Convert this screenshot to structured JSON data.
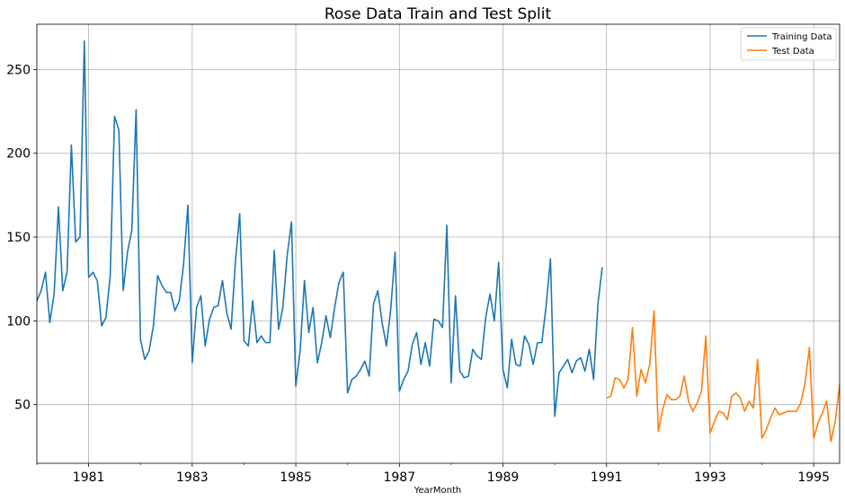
{
  "chart_data": {
    "type": "line",
    "title": "Rose Data Train and Test Split",
    "xlabel": "YearMonth",
    "ylabel": "",
    "xlim": [
      "1980-01",
      "1995-07"
    ],
    "ylim": [
      15,
      277
    ],
    "x_ticks": [
      "1981",
      "1983",
      "1985",
      "1987",
      "1989",
      "1991",
      "1993",
      "1995"
    ],
    "y_ticks": [
      50,
      100,
      150,
      200,
      250
    ],
    "grid": true,
    "legend_position": "top-right",
    "series": [
      {
        "name": "Training Data",
        "color": "#1f77b4",
        "start": "1980-01",
        "values": [
          112,
          118,
          129,
          99,
          116,
          168,
          118,
          129,
          205,
          147,
          150,
          267,
          126,
          129,
          124,
          97,
          102,
          127,
          222,
          214,
          118,
          141,
          154,
          226,
          89,
          77,
          82,
          97,
          127,
          121,
          117,
          117,
          106,
          112,
          134,
          169,
          75,
          108,
          115,
          85,
          101,
          108,
          109,
          124,
          105,
          95,
          135,
          164,
          88,
          85,
          112,
          87,
          91,
          87,
          87,
          142,
          95,
          108,
          139,
          159,
          61,
          82,
          124,
          93,
          108,
          75,
          87,
          103,
          90,
          108,
          123,
          129,
          57,
          65,
          67,
          71,
          76,
          67,
          110,
          118,
          99,
          85,
          107,
          141,
          58,
          65,
          70,
          86,
          93,
          74,
          87,
          73,
          101,
          100,
          96,
          157,
          63,
          115,
          70,
          66,
          67,
          83,
          79,
          77,
          102,
          116,
          100,
          135,
          71,
          60,
          89,
          74,
          73,
          91,
          86,
          74,
          87,
          87,
          109,
          137,
          43,
          69,
          73,
          77,
          69,
          76,
          78,
          70,
          83,
          65,
          110,
          132
        ]
      },
      {
        "name": "Test Data",
        "color": "#ff7f0e",
        "start": "1991-01",
        "values": [
          54,
          55,
          66,
          65,
          60,
          65,
          96,
          55,
          71,
          63,
          74,
          106,
          34,
          47,
          56,
          53,
          53,
          55,
          67,
          52,
          46,
          51,
          58,
          91,
          33,
          40,
          46,
          45,
          41,
          55,
          57,
          54,
          46,
          52,
          48,
          77,
          30,
          35,
          42,
          48,
          44,
          45,
          46,
          46,
          46,
          51,
          63,
          84,
          30,
          39,
          45,
          52,
          28,
          40,
          62
        ]
      }
    ]
  }
}
